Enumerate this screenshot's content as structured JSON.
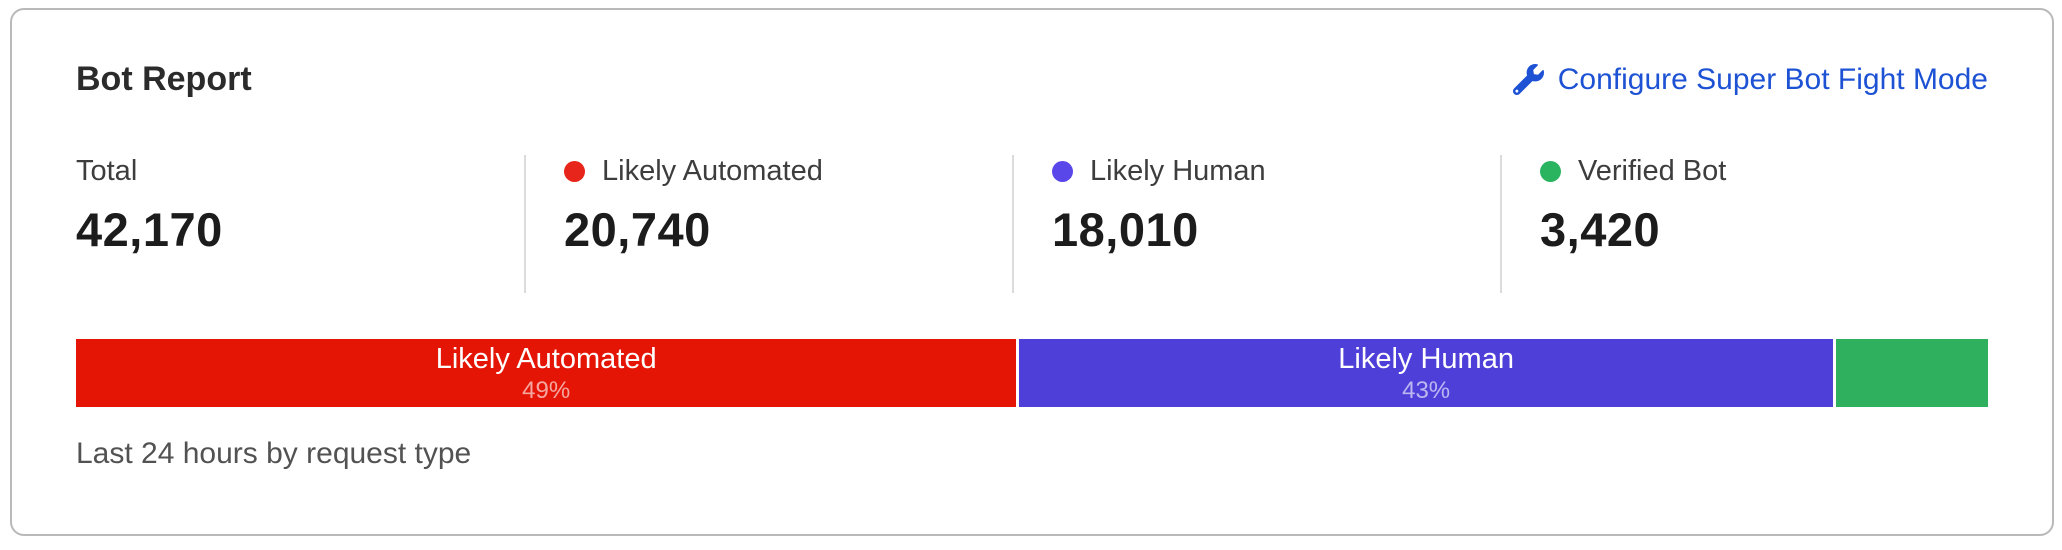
{
  "card": {
    "title": "Bot Report",
    "action_label": "Configure Super Bot Fight Mode",
    "footer": "Last 24 hours by request type"
  },
  "colors": {
    "link_blue": "#1d52d5",
    "bar_red": "#e41505",
    "bar_purple": "#4f3fd9",
    "bar_green": "#2eb05e",
    "dot_red": "#e8251a",
    "dot_purple": "#5a47ea",
    "dot_green": "#2bb45f",
    "card_border": "#b9b9b9",
    "divider": "#dcdcdc"
  },
  "stats": [
    {
      "label": "Total",
      "value": "42,170",
      "dot": ""
    },
    {
      "label": "Likely Automated",
      "value": "20,740",
      "dot": "#e8251a"
    },
    {
      "label": "Likely Human",
      "value": "18,010",
      "dot": "#5a47ea"
    },
    {
      "label": "Verified Bot",
      "value": "3,420",
      "dot": "#2bb45f"
    }
  ],
  "chart_data": {
    "type": "bar",
    "orientation": "horizontal-stacked",
    "title": "Bot Report",
    "subtitle": "Last 24 hours by request type",
    "categories": [
      "Likely Automated",
      "Likely Human",
      "Verified Bot"
    ],
    "values": [
      20740,
      18010,
      3420
    ],
    "total": 42170,
    "segments": [
      {
        "label": "Likely Automated",
        "pct_label": "49%",
        "value": 20740,
        "color": "#e41505"
      },
      {
        "label": "Likely Human",
        "pct_label": "43%",
        "value": 18010,
        "color": "#4f3fd9"
      },
      {
        "label": "",
        "pct_label": "",
        "value": 3420,
        "color": "#2eb05e"
      }
    ]
  }
}
